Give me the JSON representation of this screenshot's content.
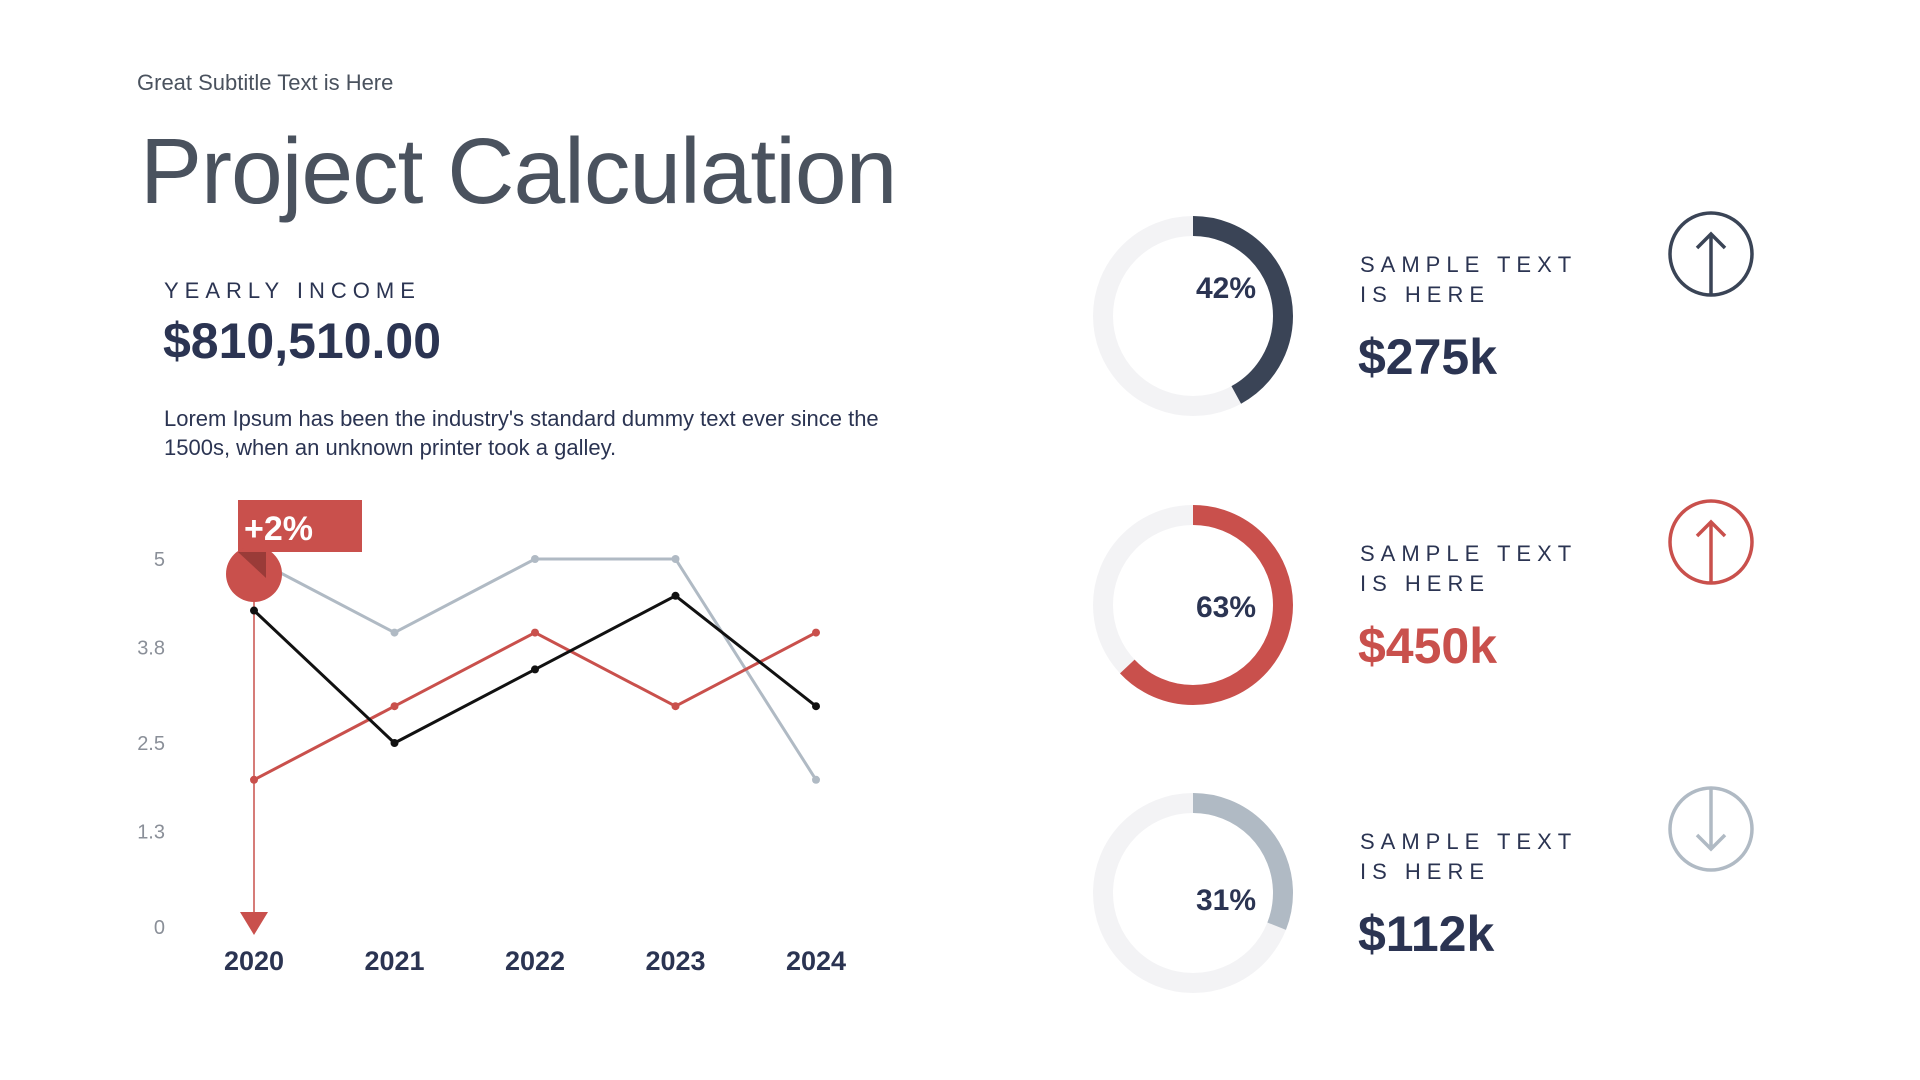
{
  "header": {
    "subtitle": "Great Subtitle Text is Here",
    "title": "Project Calculation"
  },
  "income": {
    "label": "YEARLY INCOME",
    "value": "$810,510.00",
    "description": "Lorem Ipsum has been the industry's standard dummy text ever since the 1500s, when an unknown printer took a galley."
  },
  "colors": {
    "dark": "#3a4456",
    "red": "#c9504c",
    "gray": "#b0bac4",
    "track": "#f3f3f5",
    "navy": "#2b3452"
  },
  "chart_data": {
    "type": "line",
    "categories": [
      "2020",
      "2021",
      "2022",
      "2023",
      "2024"
    ],
    "y_ticks": [
      "0",
      "1.3",
      "2.5",
      "3.8",
      "5"
    ],
    "ylim": [
      0,
      5
    ],
    "grid": false,
    "series": [
      {
        "color": "#b0bac4",
        "values": [
          5,
          4,
          5,
          5,
          2
        ]
      },
      {
        "color": "#c9504c",
        "values": [
          2,
          3,
          4,
          3,
          4
        ]
      },
      {
        "color": "#111111",
        "values": [
          4.3,
          2.5,
          3.5,
          4.5,
          3
        ]
      }
    ],
    "annotation": {
      "label": "+2%",
      "category": "2020"
    }
  },
  "stats": [
    {
      "percent": 42,
      "percent_label": "42%",
      "label_line1": "SAMPLE TEXT",
      "label_line2": "IS HERE",
      "value": "$275k",
      "color": "#3a4456",
      "value_color": "#2b3452",
      "icon": "arrow-up-circle-icon",
      "direction": "up"
    },
    {
      "percent": 63,
      "percent_label": "63%",
      "label_line1": "SAMPLE TEXT",
      "label_line2": "IS HERE",
      "value": "$450k",
      "color": "#c9504c",
      "value_color": "#c9504c",
      "icon": "arrow-up-circle-icon",
      "direction": "up"
    },
    {
      "percent": 31,
      "percent_label": "31%",
      "label_line1": "SAMPLE TEXT",
      "label_line2": "IS HERE",
      "value": "$112k",
      "color": "#b0bac4",
      "value_color": "#2b3452",
      "icon": "arrow-down-circle-icon",
      "direction": "down"
    }
  ]
}
